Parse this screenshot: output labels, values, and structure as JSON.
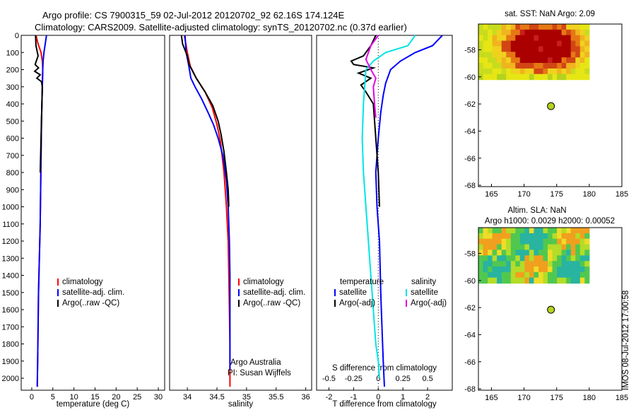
{
  "header": {
    "line1": "Argo profile: CS 7900315_59 02-Jul-2012 20120702_92 62.16S 174.124E",
    "line2": "Climatology: CARS2009. Satellite-adjusted climatology: synTS_20120702.nc (0.37d earlier)"
  },
  "side_label": "IMOS 08-Jul-2012 17:00:58",
  "colors": {
    "climatology": "#ff0000",
    "satellite": "#0000ff",
    "argo": "#000000",
    "salinity_satellite": "#00e5e5",
    "salinity_argo": "#e500e5",
    "argo_dot": "#b4d21e"
  },
  "chart_data": [
    {
      "type": "line",
      "id": "temperature",
      "xlabel": "temperature (deg C)",
      "ylabel": "",
      "xlim": [
        -2.5,
        31.5
      ],
      "ylim": [
        2070,
        0
      ],
      "x_ticks": [
        0,
        5,
        10,
        15,
        20,
        25,
        30
      ],
      "y_ticks": [
        0,
        100,
        200,
        300,
        400,
        500,
        600,
        700,
        800,
        900,
        1000,
        1100,
        1200,
        1300,
        1400,
        1500,
        1600,
        1700,
        1800,
        1900,
        2000
      ],
      "legend": [
        "climatology",
        "satellite-adj. clim.",
        "Argo(..raw -QC)"
      ],
      "legend_position": "lower-middle",
      "series": [
        {
          "name": "climatology",
          "color": "#ff0000",
          "x": [
            1.0,
            1.5,
            2.2,
            2.5,
            2.6,
            2.5,
            2.4,
            2.3,
            2.2,
            2.1,
            2.0,
            1.8,
            1.6,
            1.5,
            1.4,
            1.3
          ],
          "y": [
            0,
            50,
            100,
            150,
            200,
            300,
            400,
            500,
            700,
            900,
            1100,
            1300,
            1500,
            1700,
            1900,
            2050
          ]
        },
        {
          "name": "satellite-adj. clim.",
          "color": "#0000ff",
          "x": [
            3.5,
            3.2,
            2.9,
            2.7,
            2.6,
            2.5,
            2.4,
            2.3,
            2.2,
            2.1,
            2.0,
            1.8,
            1.6,
            1.5,
            1.4,
            1.3
          ],
          "y": [
            0,
            50,
            100,
            150,
            200,
            300,
            400,
            500,
            700,
            900,
            1100,
            1300,
            1500,
            1700,
            1900,
            2050
          ]
        },
        {
          "name": "Argo(..raw -QC)",
          "color": "#000000",
          "x": [
            0.9,
            1.0,
            1.5,
            0.8,
            1.6,
            0.7,
            2.0,
            1.2,
            2.3,
            2.5,
            2.4,
            2.3,
            2.2,
            2.1,
            2.0
          ],
          "y": [
            0,
            60,
            120,
            170,
            190,
            210,
            230,
            250,
            270,
            300,
            400,
            500,
            600,
            700,
            800
          ]
        }
      ]
    },
    {
      "type": "line",
      "id": "salinity",
      "xlabel": "salinity",
      "xlim": [
        33.7,
        36.1
      ],
      "ylim": [
        2070,
        0
      ],
      "x_ticks": [
        34,
        34.5,
        35,
        35.5,
        36
      ],
      "legend": [
        "climatology",
        "satellite-adj. clim.",
        "Argo(..raw -QC)"
      ],
      "legend_position": "lower-middle",
      "annotation": [
        "Argo Australia",
        "PI: Susan Wijffels"
      ],
      "series": [
        {
          "name": "climatology",
          "color": "#ff0000",
          "x": [
            33.95,
            34.0,
            34.05,
            34.15,
            34.3,
            34.42,
            34.5,
            34.56,
            34.62,
            34.66,
            34.69,
            34.7,
            34.71,
            34.72,
            34.72
          ],
          "y": [
            0,
            100,
            180,
            250,
            330,
            420,
            520,
            620,
            800,
            1000,
            1200,
            1400,
            1600,
            1800,
            2050
          ]
        },
        {
          "name": "satellite-adj. clim.",
          "color": "#0000ff",
          "x": [
            33.96,
            33.97,
            33.98,
            34.02,
            34.06,
            34.13,
            34.24,
            34.35,
            34.44,
            34.52,
            34.6,
            34.66,
            34.69,
            34.71,
            34.72,
            34.72,
            34.72
          ],
          "y": [
            0,
            50,
            100,
            170,
            250,
            300,
            370,
            450,
            520,
            600,
            700,
            850,
            1000,
            1200,
            1400,
            1700,
            1950
          ]
        },
        {
          "name": "Argo(..raw -QC)",
          "color": "#000000",
          "x": [
            33.9,
            33.92,
            34.0,
            34.03,
            34.15,
            34.3,
            34.43,
            34.52,
            34.57,
            34.62,
            34.66,
            34.69,
            34.7
          ],
          "y": [
            0,
            50,
            120,
            170,
            250,
            330,
            410,
            500,
            580,
            680,
            800,
            900,
            1000
          ]
        }
      ]
    },
    {
      "type": "line",
      "id": "difference",
      "xlabel": "T difference from climatology",
      "xlabel_top": "S difference from climatology",
      "xlim": [
        -2.5,
        3.0
      ],
      "ylim": [
        2070,
        0
      ],
      "x_ticks": [
        -2,
        -1,
        0,
        1,
        2
      ],
      "s_ticks": [
        -0.5,
        -0.25,
        0,
        0.25,
        0.5
      ],
      "legend_titles": [
        "temperature",
        "salinity"
      ],
      "legend": [
        "satellite",
        "Argo(-adj)",
        "satellite",
        "Argo(-adj)"
      ],
      "series": [
        {
          "name": "satellite",
          "group": "temperature",
          "color": "#0000ff",
          "x": [
            2.6,
            2.2,
            1.5,
            0.9,
            0.5,
            0.3,
            0.2,
            0.1,
            0.0,
            -0.1,
            -0.05,
            0.05,
            0.1,
            0.15,
            0.2,
            0.25
          ],
          "y": [
            0,
            60,
            100,
            150,
            200,
            280,
            350,
            450,
            600,
            800,
            1000,
            1200,
            1500,
            1700,
            1900,
            2050
          ]
        },
        {
          "name": "Argo(-adj)",
          "group": "temperature",
          "color": "#000000",
          "x": [
            -0.1,
            -0.3,
            -0.6,
            -1.1,
            -1.0,
            -0.2,
            -0.8,
            -0.3,
            -0.7,
            -0.5,
            -0.2,
            -0.1,
            0.0,
            0.05
          ],
          "y": [
            0,
            60,
            120,
            150,
            170,
            190,
            220,
            250,
            290,
            330,
            400,
            600,
            800,
            1000
          ]
        },
        {
          "name": "satellite",
          "group": "salinity",
          "color": "#00e5e5",
          "x": [
            1.5,
            1.2,
            0.3,
            -0.2,
            -0.5,
            -0.6,
            -0.65,
            -0.6,
            -0.5,
            -0.4,
            -0.3,
            -0.2,
            -0.1,
            0.0,
            0.05
          ],
          "y": [
            0,
            60,
            100,
            150,
            200,
            400,
            600,
            800,
            1000,
            1200,
            1400,
            1600,
            1800,
            1900,
            2000
          ]
        },
        {
          "name": "Argo(-adj)",
          "group": "salinity",
          "color": "#e500e5",
          "x": [
            0.0,
            -0.3,
            -0.5,
            -0.3,
            -0.1,
            -0.2,
            -0.15,
            -0.1
          ],
          "y": [
            0,
            60,
            140,
            200,
            250,
            300,
            400,
            480
          ]
        }
      ]
    },
    {
      "type": "heatmap",
      "id": "sst_map",
      "title": "sat. SST: NaN Argo: 2.09",
      "xlim": [
        163,
        185
      ],
      "ylim": [
        -68.1,
        -56.1
      ],
      "x_ticks": [
        165,
        170,
        175,
        180,
        185
      ],
      "y_ticks": [
        -58,
        -60,
        -62,
        -64,
        -66,
        -68
      ],
      "field_extent": {
        "lon": [
          163,
          180
        ],
        "lat": [
          -60.2,
          -56.1
        ]
      },
      "argo_point": {
        "lon": 174.124,
        "lat": -62.16
      }
    },
    {
      "type": "heatmap",
      "id": "sla_map",
      "title": "Altim. SLA: NaN",
      "subtitle": "Argo h1000: 0.0029 h2000: 0.00052",
      "xlim": [
        163,
        185
      ],
      "ylim": [
        -68.1,
        -56.1
      ],
      "x_ticks": [
        165,
        170,
        175,
        180,
        185
      ],
      "y_ticks": [
        -58,
        -60,
        -62,
        -64,
        -66,
        -68
      ],
      "field_extent": {
        "lon": [
          163,
          180
        ],
        "lat": [
          -60.2,
          -56.1
        ]
      },
      "argo_point": {
        "lon": 174.124,
        "lat": -62.16
      }
    }
  ]
}
